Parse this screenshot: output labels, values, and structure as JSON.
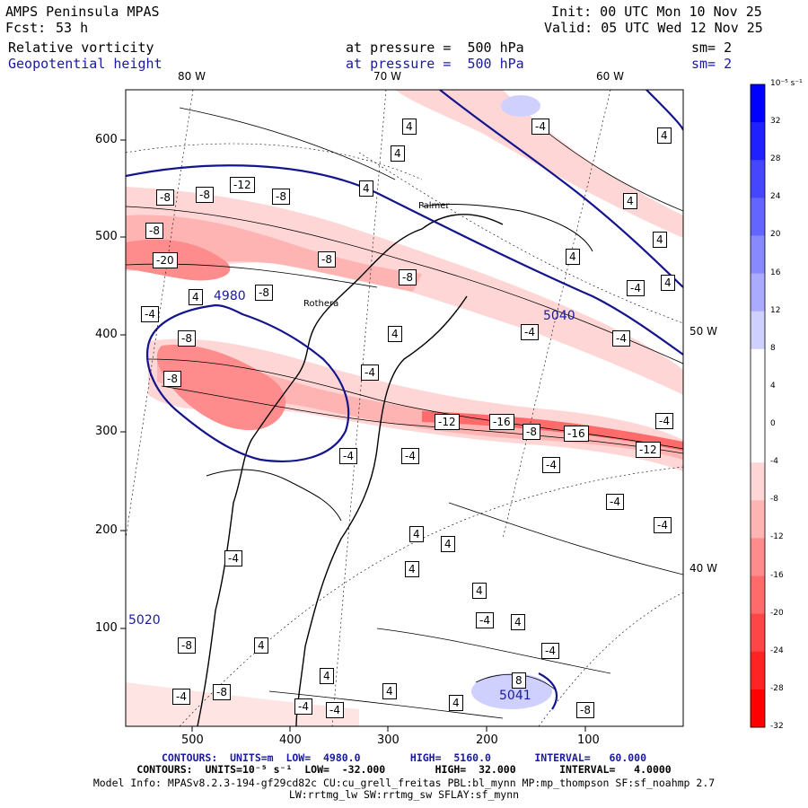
{
  "header": {
    "left": {
      "model": "AMPS Peninsula MPAS",
      "fcst_label": "Fcst:",
      "fcst_value": "53 h",
      "field1": "Relative vorticity",
      "field2": "Geopotential height"
    },
    "middle": {
      "level1": "at pressure =  500 hPa",
      "level2": "at pressure =  500 hPa"
    },
    "right": {
      "init": "Init: 00 UTC Mon 10 Nov 25",
      "valid": "Valid: 05 UTC Wed 12 Nov 25",
      "sm1": "sm= 2",
      "sm2": "sm= 2"
    }
  },
  "map": {
    "lon_labels_top": [
      "80 W",
      "70 W",
      "60 W"
    ],
    "lon_labels_right": [
      "50 W",
      "40 W"
    ],
    "y_ticks": [
      "600",
      "500",
      "400",
      "300",
      "200",
      "100"
    ],
    "x_ticks": [
      "500",
      "400",
      "300",
      "200",
      "100"
    ],
    "place_labels": [
      "Palmer",
      "Rothera"
    ],
    "height_labels": [
      "4980",
      "5040",
      "5041",
      "5020"
    ],
    "vorticity_labels": [
      "-8",
      "-8",
      "-12",
      "-8",
      "-8",
      "-20",
      "-8",
      "-8",
      "-4",
      "-8",
      "-8",
      "-4",
      "-8",
      "-16",
      "-8",
      "-16",
      "-12",
      "-12",
      "-4",
      "-4",
      "-4",
      "-4",
      "-4",
      "-4",
      "-4",
      "-4",
      "-4",
      "-4",
      "-4",
      "-8",
      "-4",
      "-8",
      "-4",
      "-8",
      "-4",
      "-4",
      "-4"
    ],
    "positive_labels": [
      "4",
      "4",
      "4",
      "4",
      "4",
      "4",
      "4",
      "4",
      "4",
      "4",
      "4",
      "4",
      "4",
      "4",
      "4",
      "4",
      "4",
      "4",
      "4",
      "8"
    ]
  },
  "colorbar": {
    "unit": "10⁻⁵ s⁻¹",
    "levels": [
      "32",
      "28",
      "24",
      "20",
      "16",
      "12",
      "8",
      "4",
      "0",
      "-4",
      "-8",
      "-12",
      "-16",
      "-20",
      "-24",
      "-28",
      "-32"
    ],
    "colors": [
      "#0000ff",
      "#2020ff",
      "#4646ff",
      "#6464ff",
      "#8888ff",
      "#aaaaff",
      "#d0d0ff",
      "#ffffff",
      "#ffffff",
      "#ffffff",
      "#ffd6d6",
      "#ffb4b4",
      "#ff8c8c",
      "#ff6a6a",
      "#ff4646",
      "#ff2424",
      "#ff0000"
    ]
  },
  "footer": {
    "line1": "CONTOURS:  UNITS=m  LOW=  4980.0        HIGH=  5160.0       INTERVAL=   60.000",
    "line2": "CONTOURS:  UNITS=10⁻⁵ s⁻¹  LOW=  -32.000        HIGH=  32.000       INTERVAL=   4.0000",
    "line3": "Model Info: MPASv8.2.3-194-gf29cd82c CU:cu_grell_freitas PBL:bl_mynn MP:mp_thompson SF:sf_noahmp 2.7",
    "line4": "LW:rrtmg_lw SW:rrtmg_sw SFLAY:sf_mynn"
  }
}
